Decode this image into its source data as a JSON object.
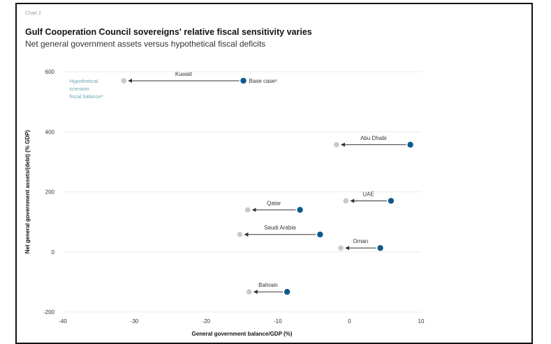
{
  "chart_label": "Chart 2",
  "title": "Gulf Cooperation Council sovereigns' relative fiscal sensitivity varies",
  "subtitle": "Net general government assets versus hypothetical fiscal deficits",
  "chart_data": {
    "type": "scatter",
    "title": "Gulf Cooperation Council sovereigns' relative fiscal sensitivity varies",
    "subtitle": "Net general government assets versus hypothetical fiscal deficits",
    "xlabel": "General government balance/GDP (%)",
    "ylabel": "Net general government assets/(debt) (% GDP)",
    "xlim": [
      -40,
      10
    ],
    "ylim": [
      -200,
      600
    ],
    "xticks": [
      -40,
      -30,
      -20,
      -10,
      0,
      10
    ],
    "yticks": [
      600,
      400,
      200,
      0,
      -200
    ],
    "grid": true,
    "series": [
      {
        "name": "Base case",
        "color": "#0d5a8c"
      },
      {
        "name": "Hypothetical scenario fiscal balance",
        "color": "#c9c9c9"
      }
    ],
    "legend": {
      "base_label": "Base case¹",
      "hypo_lines": [
        "Hypothetical",
        "scenario",
        "fiscal balance²"
      ]
    },
    "points": [
      {
        "label": "Kuwait",
        "base": [
          -14.8,
          570
        ],
        "hypo": [
          -31.5,
          570
        ]
      },
      {
        "label": "Abu Dhabi",
        "base": [
          8.5,
          357
        ],
        "hypo": [
          -1.8,
          357
        ]
      },
      {
        "label": "UAE",
        "base": [
          5.8,
          170
        ],
        "hypo": [
          -0.5,
          170
        ]
      },
      {
        "label": "Qatar",
        "base": [
          -6.9,
          140
        ],
        "hypo": [
          -14.2,
          140
        ]
      },
      {
        "label": "Saudi Arabia",
        "base": [
          -4.1,
          58
        ],
        "hypo": [
          -15.3,
          58
        ]
      },
      {
        "label": "Oman",
        "base": [
          4.3,
          13
        ],
        "hypo": [
          -1.2,
          13
        ]
      },
      {
        "label": "Bahrain",
        "base": [
          -8.7,
          -133
        ],
        "hypo": [
          -14.0,
          -133
        ]
      }
    ]
  }
}
